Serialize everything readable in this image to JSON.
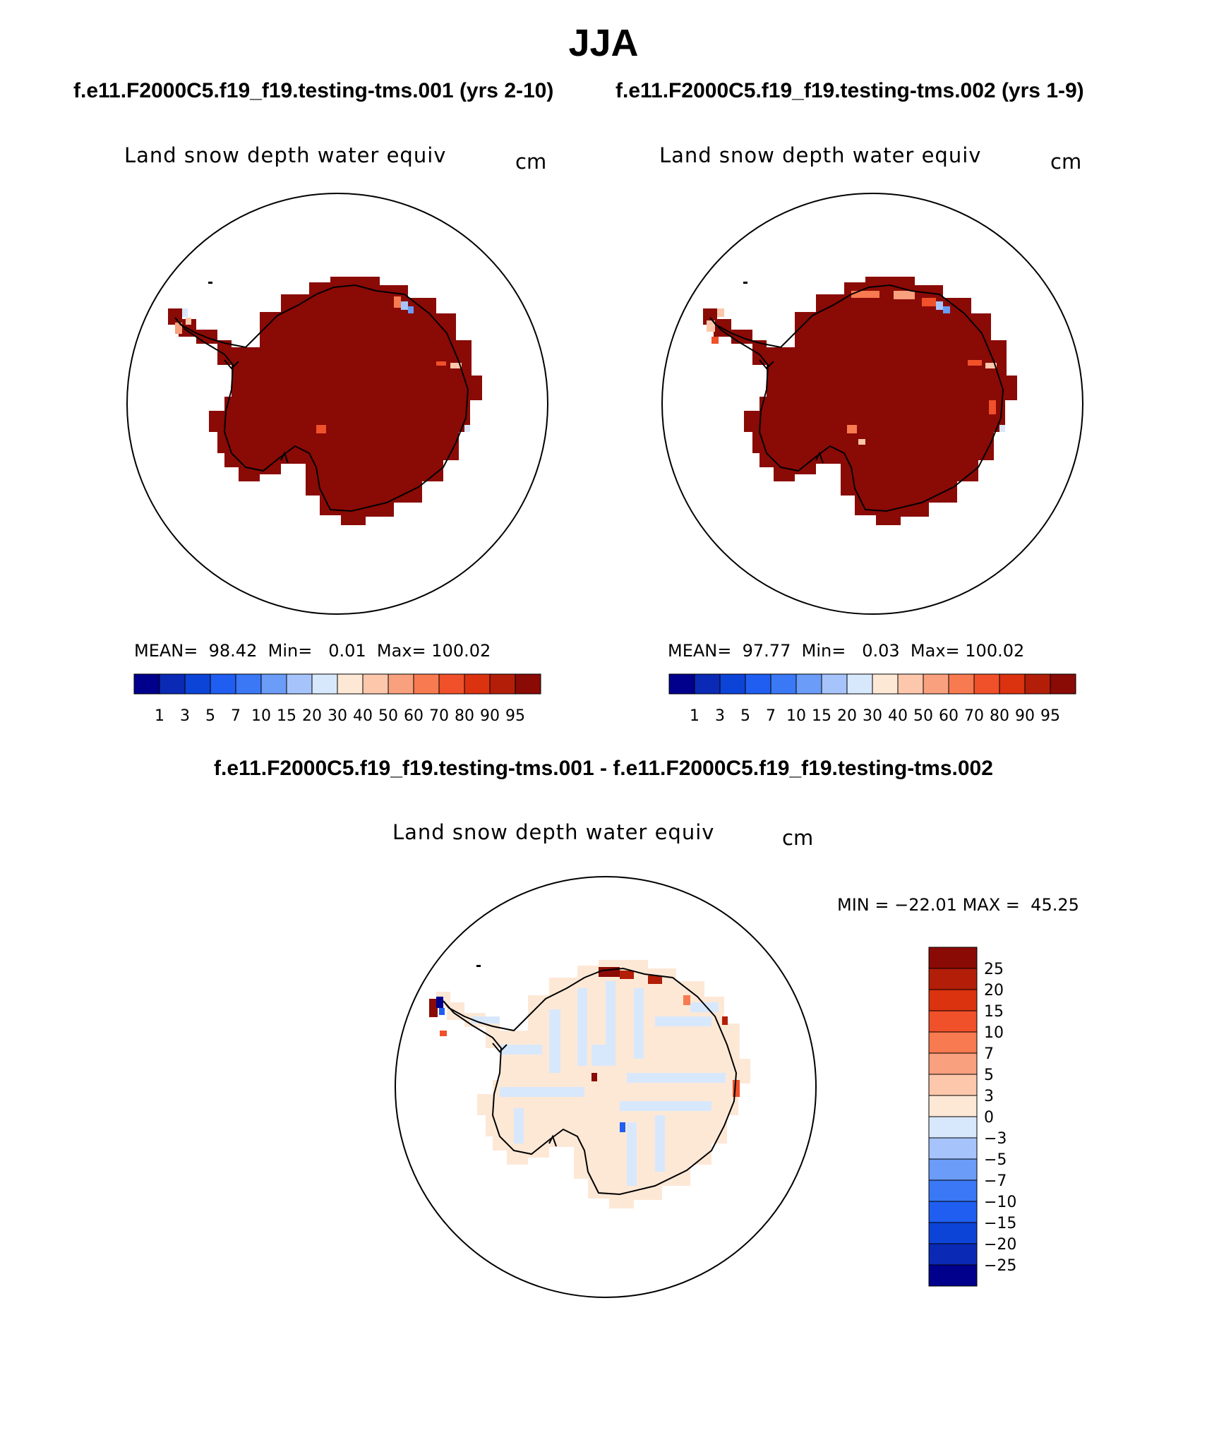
{
  "figure": {
    "season": "JJA",
    "case1_title": "f.e11.F2000C5.f19_f19.testing-tms.001 (yrs 2-10)",
    "case2_title": "f.e11.F2000C5.f19_f19.testing-tms.002 (yrs 1-9)",
    "diff_title": "f.e11.F2000C5.f19_f19.testing-tms.001 - f.e11.F2000C5.f19_f19.testing-tms.002"
  },
  "panels": [
    {
      "variable": "Land snow depth water equiv",
      "units": "cm",
      "mean_label": "MEAN=",
      "mean": "98.42",
      "min_label": "Min=",
      "min": "0.01",
      "max_label": "Max=",
      "max": "100.02"
    },
    {
      "variable": "Land snow depth water equiv",
      "units": "cm",
      "mean_label": "MEAN=",
      "mean": "97.77",
      "min_label": "Min=",
      "min": "0.03",
      "max_label": "Max=",
      "max": "100.02"
    }
  ],
  "diff_panel": {
    "variable": "Land snow depth water equiv",
    "units": "cm",
    "min_label": "MIN =",
    "min": "−22.01",
    "max_label": "MAX =",
    "max": "45.25"
  },
  "chart_data": {
    "type": "heatmap",
    "projection": "south polar stereographic",
    "dominant_value_panels": "> 95",
    "dominant_value_diff": "0 to ±3",
    "colorbar_abs": {
      "tick_labels": [
        "1",
        "3",
        "5",
        "7",
        "10",
        "15",
        "20",
        "30",
        "40",
        "50",
        "60",
        "70",
        "80",
        "90",
        "95"
      ],
      "colors": [
        "#00008c",
        "#0a2ab5",
        "#0d44d8",
        "#1f5ef0",
        "#3a78f5",
        "#6a9cf8",
        "#a6c4fb",
        "#d8e8fc",
        "#fde8d6",
        "#fcc7ab",
        "#f9a07e",
        "#f77a50",
        "#f0502a",
        "#db3210",
        "#b21e08",
        "#8a0a05"
      ]
    },
    "colorbar_diff": {
      "tick_labels": [
        "25",
        "20",
        "15",
        "10",
        "7",
        "5",
        "3",
        "0",
        "−3",
        "−5",
        "−7",
        "−10",
        "−15",
        "−20",
        "−25"
      ],
      "colors": [
        "#8a0a05",
        "#b21e08",
        "#db3210",
        "#f0502a",
        "#f77a50",
        "#f9a07e",
        "#fcc7ab",
        "#fde8d6",
        "#d8e8fc",
        "#a6c4fb",
        "#6a9cf8",
        "#3a78f5",
        "#1f5ef0",
        "#0d44d8",
        "#0a2ab5",
        "#00008c"
      ]
    }
  }
}
